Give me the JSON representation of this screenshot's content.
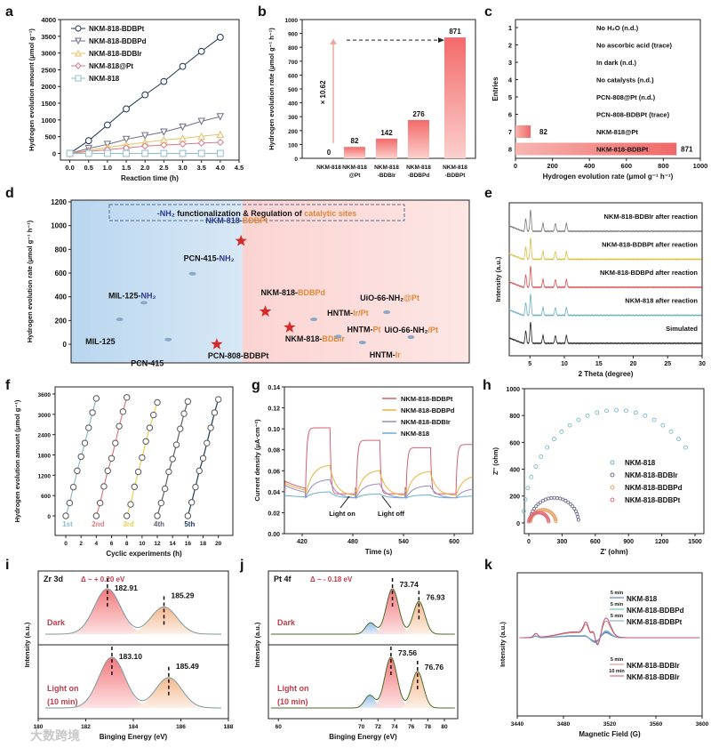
{
  "watermark": "大数跨境",
  "chart_data": [
    {
      "panel": "a",
      "type": "line",
      "xlabel": "Reaction time (h)",
      "ylabel": "Hydrogen evolution amount (μmol g⁻¹)",
      "xlim": [
        -0.25,
        4.5
      ],
      "ylim": [
        -200,
        4000
      ],
      "xticks": [
        0.0,
        0.5,
        1.0,
        1.5,
        2.0,
        2.5,
        3.0,
        3.5,
        4.0,
        4.5
      ],
      "yticks": [
        0,
        500,
        1000,
        1500,
        2000,
        2500,
        3000,
        3500,
        4000
      ],
      "x": [
        0,
        0.5,
        1,
        1.5,
        2,
        2.5,
        3,
        3.5,
        4
      ],
      "legend_position": "top-left",
      "series": [
        {
          "name": "NKM-818-BDBPt",
          "marker": "circle",
          "color": "#1d3550",
          "values": [
            0,
            380,
            850,
            1330,
            1750,
            2150,
            2600,
            3050,
            3470
          ]
        },
        {
          "name": "NKM-818-BDBPd",
          "marker": "triangle-down",
          "color": "#6e6e88",
          "values": [
            0,
            150,
            270,
            420,
            530,
            640,
            790,
            960,
            1100
          ]
        },
        {
          "name": "NKM-818-BDBIr",
          "marker": "triangle-up",
          "color": "#e6bf5c",
          "values": [
            0,
            90,
            180,
            260,
            330,
            400,
            450,
            510,
            570
          ]
        },
        {
          "name": "NKM-818@Pt",
          "marker": "diamond",
          "color": "#d9788a",
          "values": [
            0,
            60,
            110,
            160,
            220,
            250,
            280,
            310,
            330
          ]
        },
        {
          "name": "NKM-818",
          "marker": "square",
          "color": "#8fbccb",
          "values": [
            0,
            0,
            0,
            0,
            0,
            0,
            0,
            0,
            0
          ]
        }
      ]
    },
    {
      "panel": "b",
      "type": "bar",
      "ylabel": "Hydrogen evolution rate (μmol g⁻¹ h⁻¹)",
      "ylim": [
        0,
        1000
      ],
      "yticks": [
        0,
        100,
        200,
        300,
        400,
        500,
        600,
        700,
        800,
        900,
        1000
      ],
      "categories": [
        [
          "NKM-818"
        ],
        [
          "NKM-818",
          "@Pt"
        ],
        [
          "NKM-818",
          "-BDBIr"
        ],
        [
          "NKM-818",
          "-BDBPd"
        ],
        [
          "NKM-818",
          "-BDBPt"
        ]
      ],
      "values": [
        0,
        82,
        142,
        276,
        871
      ],
      "value_labels": [
        "0",
        "82",
        "142",
        "276",
        "871"
      ],
      "annotation": "× 10.62"
    },
    {
      "panel": "c",
      "type": "bar",
      "xlabel": "Hydrogen evolution rate (μmol g⁻¹ h⁻¹)",
      "ylabel": "Entries",
      "xlim": [
        0,
        1000
      ],
      "xticks": [
        0,
        200,
        400,
        600,
        800,
        1000
      ],
      "entries": [
        {
          "entry": "1",
          "label": "No H₂O (n.d.)",
          "value": 0
        },
        {
          "entry": "2",
          "label": "No ascorbic acid (trace)",
          "value": 0
        },
        {
          "entry": "3",
          "label": "In dark (n.d.)",
          "value": 0
        },
        {
          "entry": "4",
          "label": "No catalysts (n.d.)",
          "value": 0
        },
        {
          "entry": "5",
          "label": "PCN-808@Pt (n.d.)",
          "value": 0
        },
        {
          "entry": "6",
          "label": "PCN-808-BDBPt (trace)",
          "value": 0
        },
        {
          "entry": "7",
          "label": "NKM-818@Pt",
          "value": 82,
          "value_label": "82"
        },
        {
          "entry": "8",
          "label": "NKM-818-BDBPt",
          "value": 871,
          "value_label": "871"
        }
      ]
    },
    {
      "panel": "d",
      "type": "scatter",
      "ylabel": "Hydrogen evolution rate (μmol g⁻¹ h⁻¹)",
      "ylim": [
        -157,
        1215
      ],
      "yticks": [
        0,
        200,
        400,
        600,
        800,
        1000,
        1200
      ],
      "banner": {
        "prefix": "-NH₂",
        "middle": " functionalization & Regulation of ",
        "suffix": "catalytic sites"
      },
      "points": [
        {
          "x": 1,
          "y": 210,
          "label": [
            "MIL-125",
            ""
          ],
          "star": false
        },
        {
          "x": 2,
          "y": 350,
          "label": [
            "MIL-125-",
            "NH₂"
          ],
          "star": false
        },
        {
          "x": 3,
          "y": 40,
          "label": [
            "PCN-415",
            ""
          ],
          "star": false
        },
        {
          "x": 4,
          "y": 595,
          "label": [
            "PCN-415-",
            "NH₂"
          ],
          "star": false
        },
        {
          "x": 5,
          "y": 0,
          "label": [
            "PCN-808-BDBPt",
            ""
          ],
          "star": true
        },
        {
          "x": 6,
          "y": 871,
          "label": [
            "NKM-818-",
            "BDBPt"
          ],
          "star": true
        },
        {
          "x": 7,
          "y": 276,
          "label": [
            "NKM-818-",
            "BDBPd"
          ],
          "star": true
        },
        {
          "x": 8,
          "y": 142,
          "label": [
            "NKM-818-",
            "BDBIr"
          ],
          "star": true
        },
        {
          "x": 9,
          "y": 210,
          "label": [
            "HNTM-",
            "Ir/Pt"
          ],
          "star": false
        },
        {
          "x": 10,
          "y": 65,
          "label": [
            "HNTM-",
            "Pt"
          ],
          "star": false
        },
        {
          "x": 11,
          "y": 15,
          "label": [
            "HNTM-",
            "Ir"
          ],
          "star": false
        },
        {
          "x": 12,
          "y": 270,
          "label": [
            "UiO-66-NH₂",
            "@Pt"
          ],
          "star": false
        },
        {
          "x": 13,
          "y": 60,
          "label": [
            "UiO-66-NH₂",
            "/Pt"
          ],
          "star": false
        }
      ]
    },
    {
      "panel": "e",
      "type": "line",
      "xlabel": "2 Theta (degree)",
      "ylabel": "Intensity (a.u.)",
      "xlim": [
        2,
        30
      ],
      "xticks": [
        5,
        10,
        15,
        20,
        25,
        30
      ],
      "peaks": [
        4.4,
        5.1,
        6.9,
        8.7,
        10.3
      ],
      "series": [
        {
          "name": "NKM-818-BDBIr after reaction",
          "color": "#7a7a7a"
        },
        {
          "name": "NKM-818-BDBPt after reaction",
          "color": "#d8c040"
        },
        {
          "name": "NKM-818-BDBPd after reaction",
          "color": "#d85050"
        },
        {
          "name": "NKM-818 after reaction",
          "color": "#6ab0c0"
        },
        {
          "name": "Simulated",
          "color": "#222222"
        }
      ]
    },
    {
      "panel": "f",
      "type": "line",
      "xlabel": "Cyclic experiments (h)",
      "ylabel": "Hydrogen evolution amount (μmol g⁻¹)",
      "xlim": [
        -1.4,
        21.9
      ],
      "ylim": [
        -578,
        3810
      ],
      "xticks": [
        0,
        2,
        4,
        6,
        8,
        10,
        12,
        14,
        16,
        18,
        20
      ],
      "yticks": [
        0,
        600,
        1200,
        1800,
        2400,
        3000,
        3600
      ],
      "cycles": [
        {
          "name": "1st",
          "start": 0,
          "color": "#8fbccb",
          "values": [
            0,
            380,
            850,
            1330,
            1750,
            2150,
            2600,
            3050,
            3470
          ]
        },
        {
          "name": "2nd",
          "start": 4,
          "color": "#e07a80",
          "values": [
            0,
            380,
            870,
            1330,
            1700,
            2150,
            2650,
            3080,
            3500
          ]
        },
        {
          "name": "3rd",
          "start": 8,
          "color": "#e6d24c",
          "values": [
            0,
            340,
            860,
            1300,
            1720,
            2200,
            2600,
            2980,
            3350
          ]
        },
        {
          "name": "4th",
          "start": 12,
          "color": "#606070",
          "values": [
            0,
            380,
            800,
            1300,
            1680,
            2100,
            2570,
            3020,
            3380
          ]
        },
        {
          "name": "5th",
          "start": 16,
          "color": "#1a3a5a",
          "values": [
            0,
            400,
            850,
            1330,
            1700,
            2150,
            2600,
            3050,
            3440
          ]
        }
      ]
    },
    {
      "panel": "g",
      "type": "line",
      "xlabel": "Time (s)",
      "ylabel": "Current density (μA·cm⁻²)",
      "xlim": [
        399,
        622
      ],
      "ylim": [
        0,
        0.14
      ],
      "xticks": [
        420,
        480,
        540,
        600
      ],
      "yticks": [
        0.0,
        0.02,
        0.04,
        0.06,
        0.08,
        0.1,
        0.12,
        0.14
      ],
      "light_on_intervals": [
        [
          424,
          453
        ],
        [
          484,
          512
        ],
        [
          543,
          572
        ],
        [
          602,
          622
        ]
      ],
      "series": [
        {
          "name": "NKM-818-BDBPt",
          "color": "#d46070",
          "off": 0.038,
          "on": [
            0.101,
            0.089,
            0.082,
            0.085
          ]
        },
        {
          "name": "NKM-818-BDBPd",
          "color": "#eab040",
          "off": 0.036,
          "on": [
            0.066,
            0.061,
            0.06,
            0.056
          ]
        },
        {
          "name": "NKM-818-BDBIr",
          "color": "#9a8ac8",
          "off": 0.034,
          "on": [
            0.052,
            0.048,
            0.046,
            0.043
          ]
        },
        {
          "name": "NKM-818",
          "color": "#6aaed0",
          "off": 0.034,
          "on": [
            0.04,
            0.038,
            0.037,
            0.036
          ]
        }
      ],
      "annotations": [
        "Light on",
        "Light off"
      ]
    },
    {
      "panel": "h",
      "type": "scatter",
      "xlabel": "Z' (ohm)",
      "ylabel": "Z'' (ohm)",
      "xlim": [
        -40,
        1580
      ],
      "ylim": [
        -80,
        1000
      ],
      "xticks": [
        0,
        300,
        600,
        900,
        1200,
        1500
      ],
      "yticks": [
        0,
        200,
        400,
        600,
        800,
        1000
      ],
      "series": [
        {
          "name": "NKM-818",
          "color": "#6aaec0",
          "center": 790,
          "radius": 840
        },
        {
          "name": "NKM-818-BDBIr",
          "color": "#6a6a90",
          "center": 230,
          "radius": 220
        },
        {
          "name": "NKM-818-BDBPd",
          "color": "#e8a060",
          "center": 130,
          "radius": 115
        },
        {
          "name": "NKM-818-BDBPt",
          "color": "#e06a78",
          "center": 90,
          "radius": 90
        }
      ]
    },
    {
      "panel": "i",
      "type": "area",
      "title": "Zr 3d",
      "delta": "Δ ~ + 0.20 eV",
      "xlabel": "Binging Energy (eV)",
      "ylabel": "Intensity (a.u.)",
      "xlim": [
        180,
        188
      ],
      "xticks": [
        180,
        182,
        184,
        186,
        188
      ],
      "rows": [
        {
          "name": "Dark",
          "peaks": [
            182.91,
            185.29
          ],
          "peak_labels": [
            "182.91",
            "185.29"
          ]
        },
        {
          "name": "Light on (10 min)",
          "name_lines": [
            "Light on",
            "(10 min)"
          ],
          "peaks": [
            183.1,
            185.49
          ],
          "peak_labels": [
            "183.10",
            "185.49"
          ]
        }
      ]
    },
    {
      "panel": "j",
      "type": "area",
      "title": "Pt 4f",
      "delta": "Δ ~ - 0.18 eV",
      "xlabel": "Binging Energy (eV)",
      "ylabel": "Intensity (a.u.)",
      "xlim": [
        58.8,
        81.6
      ],
      "xticks": [
        60,
        70,
        72,
        74,
        76,
        78,
        80
      ],
      "rows": [
        {
          "name": "Dark",
          "peaks": [
            71.1,
            73.74,
            76.93
          ],
          "peak_labels": [
            "",
            "73.74",
            "76.93"
          ]
        },
        {
          "name": "Light on (10 min)",
          "name_lines": [
            "Light on",
            "(10 min)"
          ],
          "peaks": [
            71.0,
            73.56,
            76.76
          ],
          "peak_labels": [
            "",
            "73.56",
            "76.76"
          ]
        }
      ]
    },
    {
      "panel": "k",
      "type": "line",
      "xlabel": "Magnetic Field (G)",
      "ylabel": "Intensity (a.u.)",
      "xlim": [
        3440,
        3600
      ],
      "xticks": [
        3440,
        3480,
        3520,
        3560,
        3600
      ],
      "series": [
        {
          "time": "5 min",
          "name": "NKM-818",
          "color": "#4a6aa0",
          "amp": 0.25
        },
        {
          "time": "5 min",
          "name": "NKM-818-BDBPd",
          "color": "#5ab0b8",
          "amp": 0.35
        },
        {
          "time": "5 min",
          "name": "NKM-818-BDBPt",
          "color": "#7aa0c8",
          "amp": 0.3
        },
        {
          "time": "5 min",
          "name": "NKM-818-BDBIr",
          "color": "#d08a78",
          "amp": 0.85
        },
        {
          "time": "10 min",
          "name": "NKM-818-BDBIr",
          "color": "#c0507a",
          "amp": 1.0
        }
      ]
    }
  ]
}
